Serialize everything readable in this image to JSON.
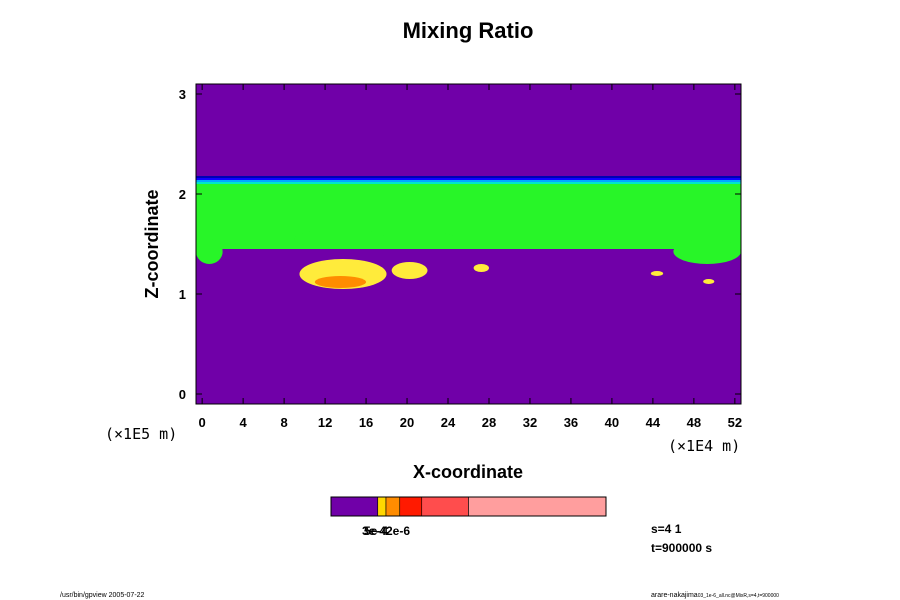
{
  "chart_data": {
    "type": "heatmap",
    "title": "Mixing Ratio",
    "xlabel": "X-coordinate",
    "ylabel": "Z-coordinate",
    "x_unit": "(×1E4 m)",
    "y_unit": "(×1E5 m)",
    "xlim": [
      -0.6,
      52.6
    ],
    "ylim": [
      -0.1,
      3.1
    ],
    "x_ticks": [
      0,
      4,
      8,
      12,
      16,
      20,
      24,
      28,
      32,
      36,
      40,
      44,
      48,
      52
    ],
    "y_ticks": [
      0,
      1,
      2,
      3
    ],
    "background_color": "#7000a8",
    "layers": {
      "mixed_layer": {
        "z_bottom": 1.45,
        "z_top": 2.1,
        "color": "#28f528"
      },
      "transition_band": {
        "z_bottom": 2.1,
        "z_top": 2.18,
        "colors": [
          "#00e6c8",
          "#00a8ff",
          "#1000ff",
          "#0000b4"
        ]
      },
      "base_thermals": [
        {
          "x": [
            -0.6,
            2
          ],
          "z": [
            1.3,
            1.55
          ]
        },
        {
          "x": [
            9,
            18
          ],
          "z": [
            1.45,
            1.65
          ]
        },
        {
          "x": [
            19,
            25
          ],
          "z": [
            1.45,
            1.62
          ]
        },
        {
          "x": [
            46,
            52.6
          ],
          "z": [
            1.3,
            1.55
          ]
        }
      ],
      "condensate_patches": [
        {
          "x": [
            9.5,
            18
          ],
          "z": [
            1.05,
            1.35
          ],
          "level": "yellow"
        },
        {
          "x": [
            11,
            16
          ],
          "z": [
            1.06,
            1.18
          ],
          "level": "orange"
        },
        {
          "x": [
            18.5,
            22
          ],
          "z": [
            1.15,
            1.32
          ],
          "level": "yellow"
        },
        {
          "x": [
            26.5,
            28
          ],
          "z": [
            1.22,
            1.3
          ],
          "level": "yellow"
        },
        {
          "x": [
            43.8,
            45
          ],
          "z": [
            1.18,
            1.23
          ],
          "level": "yellow"
        },
        {
          "x": [
            48.9,
            50
          ],
          "z": [
            1.1,
            1.15
          ],
          "level": "yellow"
        }
      ]
    },
    "colorbar": {
      "colors": [
        "#7000a8",
        "#ffd700",
        "#ff8c00",
        "#ff1a00",
        "#ff4d4d",
        "#ff9e9e"
      ],
      "fractions": [
        0.17,
        0.03,
        0.05,
        0.08,
        0.17,
        0.5
      ],
      "labels": [
        "3e-4",
        "5e-4",
        "2e-6"
      ]
    },
    "annotations": {
      "step": "s=4 1",
      "time": "t=900000 s",
      "footer_left": "/usr/bin/gpview 2005-07-22",
      "footer_right_main": "arare-nakajima",
      "footer_right_small": "03_1e-6_all.nc@MixR,s=4,t=900000"
    }
  }
}
